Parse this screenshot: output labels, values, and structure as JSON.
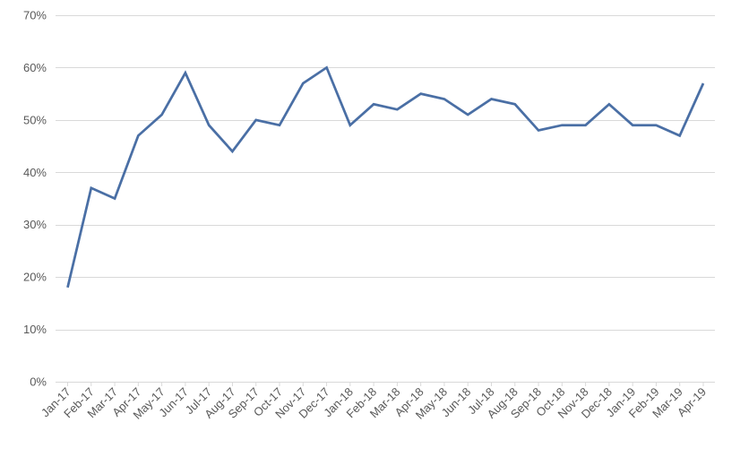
{
  "chart_data": {
    "type": "line",
    "title": "",
    "xlabel": "",
    "ylabel": "",
    "ylim": [
      0,
      70
    ],
    "y_tick_step": 10,
    "y_tick_format": "percent",
    "grid": true,
    "legend": "none",
    "colors": {
      "line": "#4a6fa5",
      "grid": "#d9d9d9",
      "axis": "#d9d9d9",
      "text": "#595959"
    },
    "categories": [
      "Jan-17",
      "Feb-17",
      "Mar-17",
      "Apr-17",
      "May-17",
      "Jun-17",
      "Jul-17",
      "Aug-17",
      "Sep-17",
      "Oct-17",
      "Nov-17",
      "Dec-17",
      "Jan-18",
      "Feb-18",
      "Mar-18",
      "Apr-18",
      "May-18",
      "Jun-18",
      "Jul-18",
      "Aug-18",
      "Sep-18",
      "Oct-18",
      "Nov-18",
      "Dec-18",
      "Jan-19",
      "Feb-19",
      "Mar-19",
      "Apr-19"
    ],
    "series": [
      {
        "values": [
          18,
          37,
          35,
          47,
          51,
          59,
          49,
          44,
          50,
          49,
          57,
          60,
          49,
          53,
          52,
          55,
          54,
          51,
          54,
          53,
          48,
          49,
          49,
          53,
          49,
          49,
          47,
          57
        ]
      }
    ]
  }
}
